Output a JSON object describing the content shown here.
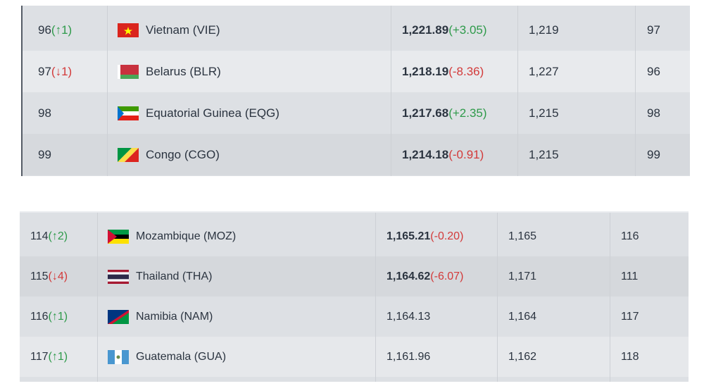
{
  "tables": [
    {
      "rows": [
        {
          "rank": "96",
          "change": "(↑1)",
          "country": "Vietnam (VIE)",
          "points": "1,221.89",
          "points_change": "(+3.05)",
          "previous_points": "1,219",
          "previous_rank": "97"
        },
        {
          "rank": "97",
          "change": "(↓1)",
          "country": "Belarus (BLR)",
          "points": "1,218.19",
          "points_change": "(-8.36)",
          "previous_points": "1,227",
          "previous_rank": "96"
        },
        {
          "rank": "98",
          "country": "Equatorial Guinea (EQG)",
          "points": "1,217.68",
          "points_change": "(+2.35)",
          "previous_points": "1,215",
          "previous_rank": "98"
        },
        {
          "rank": "99",
          "country": "Congo (CGO)",
          "points": "1,214.18",
          "points_change": "(-0.91)",
          "previous_points": "1,215",
          "previous_rank": "99"
        }
      ]
    },
    {
      "rows": [
        {
          "rank": "114",
          "change": "(↑2)",
          "country": "Mozambique (MOZ)",
          "points": "1,165.21",
          "points_change": "(-0.20)",
          "previous_points": "1,165",
          "previous_rank": "116"
        },
        {
          "rank": "115",
          "change": "(↓4)",
          "country": "Thailand (THA)",
          "points": "1,164.62",
          "points_change": "(-6.07)",
          "previous_points": "1,171",
          "previous_rank": "111"
        },
        {
          "rank": "116",
          "change": "(↑1)",
          "country": "Namibia (NAM)",
          "points": "1,164.13",
          "previous_points": "1,164",
          "previous_rank": "117"
        },
        {
          "rank": "117",
          "change": "(↑1)",
          "country": "Guatemala (GUA)",
          "points": "1,161.96",
          "previous_points": "1,162",
          "previous_rank": "118"
        }
      ]
    }
  ]
}
